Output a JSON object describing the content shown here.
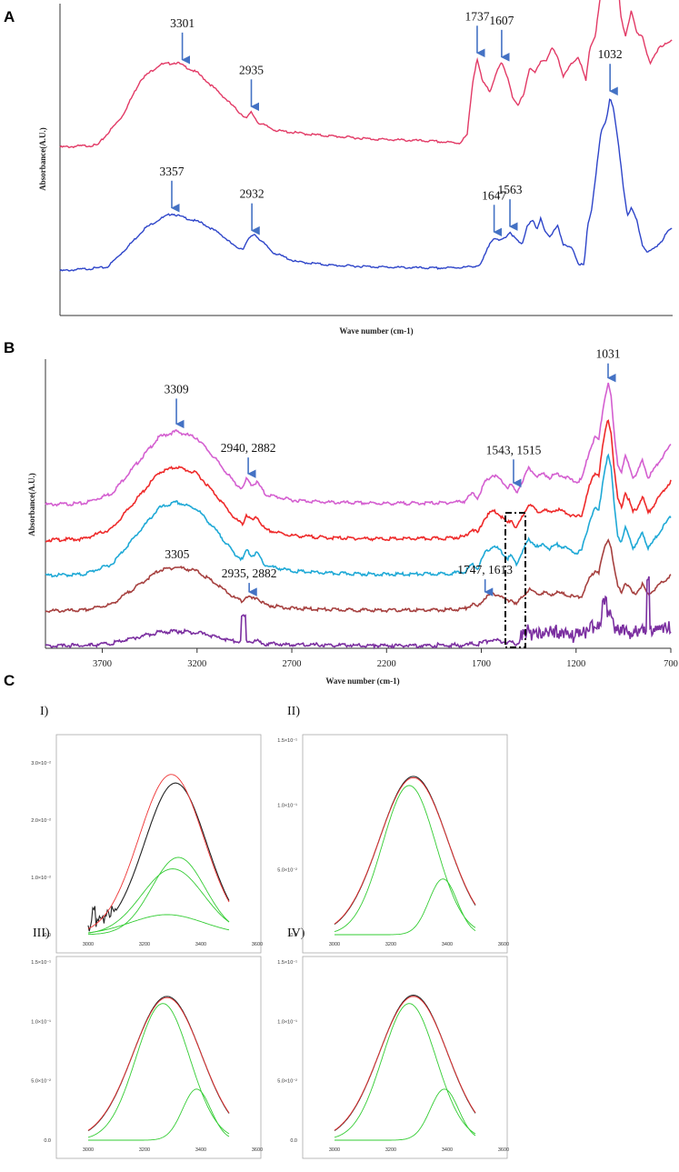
{
  "panels": {
    "A": "A",
    "B": "B",
    "C": "C"
  },
  "colors": {
    "arrow": "#4472C4",
    "green": "#33cc33",
    "fitRed": "#ee3333",
    "dataBlack": "#222222"
  },
  "chart_data": [
    {
      "id": "A",
      "type": "line",
      "title": "",
      "xlabel": "Wave number (cm-1)",
      "ylabel": "Absorbance(A.U.)",
      "xlim": [
        3950,
        700
      ],
      "series": [
        {
          "name": "top",
          "color": "#E23A66",
          "points": [
            [
              3950,
              0.3
            ],
            [
              3750,
              0.31
            ],
            [
              3620,
              0.45
            ],
            [
              3520,
              0.63
            ],
            [
              3420,
              0.7
            ],
            [
              3330,
              0.71
            ],
            [
              3220,
              0.66
            ],
            [
              3100,
              0.56
            ],
            [
              3000,
              0.47
            ],
            [
              2960,
              0.44
            ],
            [
              2935,
              0.47
            ],
            [
              2900,
              0.42
            ],
            [
              2800,
              0.38
            ],
            [
              2600,
              0.36
            ],
            [
              2300,
              0.34
            ],
            [
              2000,
              0.33
            ],
            [
              1830,
              0.32
            ],
            [
              1790,
              0.36
            ],
            [
              1760,
              0.62
            ],
            [
              1737,
              0.73
            ],
            [
              1710,
              0.62
            ],
            [
              1670,
              0.57
            ],
            [
              1640,
              0.65
            ],
            [
              1607,
              0.71
            ],
            [
              1575,
              0.64
            ],
            [
              1545,
              0.53
            ],
            [
              1520,
              0.5
            ],
            [
              1490,
              0.56
            ],
            [
              1460,
              0.68
            ],
            [
              1430,
              0.66
            ],
            [
              1400,
              0.72
            ],
            [
              1370,
              0.72
            ],
            [
              1340,
              0.78
            ],
            [
              1310,
              0.74
            ],
            [
              1280,
              0.64
            ],
            [
              1240,
              0.7
            ],
            [
              1200,
              0.74
            ],
            [
              1160,
              0.62
            ],
            [
              1140,
              0.78
            ],
            [
              1110,
              0.84
            ],
            [
              1080,
              1.05
            ],
            [
              1065,
              1.07
            ],
            [
              1045,
              1.02
            ],
            [
              1025,
              1.06
            ],
            [
              1009,
              1.34
            ],
            [
              995,
              1.16
            ],
            [
              975,
              0.93
            ],
            [
              950,
              0.84
            ],
            [
              920,
              0.96
            ],
            [
              890,
              0.85
            ],
            [
              860,
              0.84
            ],
            [
              820,
              0.7
            ],
            [
              770,
              0.79
            ],
            [
              730,
              0.8
            ],
            [
              700,
              0.82
            ]
          ]
        },
        {
          "name": "bottom",
          "color": "#2E45C9",
          "points": [
            [
              3950,
              0.0
            ],
            [
              3700,
              0.02
            ],
            [
              3600,
              0.12
            ],
            [
              3500,
              0.23
            ],
            [
              3420,
              0.28
            ],
            [
              3357,
              0.31
            ],
            [
              3300,
              0.29
            ],
            [
              3200,
              0.26
            ],
            [
              3100,
              0.2
            ],
            [
              3020,
              0.13
            ],
            [
              2980,
              0.12
            ],
            [
              2950,
              0.17
            ],
            [
              2920,
              0.2
            ],
            [
              2880,
              0.16
            ],
            [
              2820,
              0.1
            ],
            [
              2700,
              0.05
            ],
            [
              2500,
              0.03
            ],
            [
              2200,
              0.02
            ],
            [
              1950,
              0.015
            ],
            [
              1800,
              0.02
            ],
            [
              1720,
              0.03
            ],
            [
              1690,
              0.1
            ],
            [
              1665,
              0.16
            ],
            [
              1647,
              0.18
            ],
            [
              1620,
              0.16
            ],
            [
              1590,
              0.18
            ],
            [
              1563,
              0.21
            ],
            [
              1540,
              0.18
            ],
            [
              1500,
              0.14
            ],
            [
              1470,
              0.25
            ],
            [
              1440,
              0.27
            ],
            [
              1420,
              0.22
            ],
            [
              1400,
              0.29
            ],
            [
              1380,
              0.22
            ],
            [
              1350,
              0.18
            ],
            [
              1310,
              0.25
            ],
            [
              1280,
              0.14
            ],
            [
              1230,
              0.12
            ],
            [
              1200,
              0.04
            ],
            [
              1170,
              0.03
            ],
            [
              1150,
              0.25
            ],
            [
              1130,
              0.33
            ],
            [
              1100,
              0.58
            ],
            [
              1080,
              0.75
            ],
            [
              1060,
              0.79
            ],
            [
              1045,
              0.85
            ],
            [
              1032,
              0.94
            ],
            [
              1015,
              0.88
            ],
            [
              990,
              0.7
            ],
            [
              960,
              0.44
            ],
            [
              940,
              0.3
            ],
            [
              920,
              0.34
            ],
            [
              890,
              0.27
            ],
            [
              860,
              0.14
            ],
            [
              830,
              0.1
            ],
            [
              800,
              0.12
            ],
            [
              760,
              0.16
            ],
            [
              720,
              0.22
            ],
            [
              700,
              0.23
            ]
          ]
        }
      ],
      "annotations": [
        {
          "label": "3301",
          "x": 3301,
          "series": "top"
        },
        {
          "label": "2935",
          "x": 2935,
          "series": "top"
        },
        {
          "label": "1737",
          "x": 1737,
          "series": "top"
        },
        {
          "label": "1607",
          "x": 1607,
          "series": "top"
        },
        {
          "label": "1009",
          "x": 1009,
          "series": "top"
        },
        {
          "label": "3357",
          "x": 3357,
          "series": "bottom"
        },
        {
          "label": "2932",
          "x": 2932,
          "series": "bottom"
        },
        {
          "label": "1647",
          "x": 1647,
          "series": "bottom"
        },
        {
          "label": "1563",
          "x": 1563,
          "series": "bottom"
        },
        {
          "label": "1032",
          "x": 1032,
          "series": "bottom"
        }
      ]
    },
    {
      "id": "B",
      "type": "line",
      "title": "",
      "xlabel": "Wave number (cm-1)",
      "ylabel": "Absorbance(A.U.)",
      "xlim": [
        4000,
        700
      ],
      "xticks": [
        3700,
        3200,
        2700,
        2200,
        1700,
        1200,
        700
      ],
      "series": [
        {
          "name": "s1",
          "color": "#D45FD0",
          "offset": 4.0,
          "scale": 1.0
        },
        {
          "name": "s2",
          "color": "#EE2A2A",
          "offset": 3.0,
          "scale": 1.0
        },
        {
          "name": "s3",
          "color": "#1FA9D6",
          "offset": 2.0,
          "scale": 1.0
        },
        {
          "name": "s4",
          "color": "#A6403F",
          "offset": 1.0,
          "scale": 0.6
        },
        {
          "name": "s5",
          "color": "#7B2FA0",
          "offset": 0.0,
          "scale": 0.2
        }
      ],
      "baseShape": [
        [
          4000,
          0.0
        ],
        [
          3800,
          0.02
        ],
        [
          3650,
          0.2
        ],
        [
          3500,
          0.8
        ],
        [
          3400,
          1.2
        ],
        [
          3309,
          1.3
        ],
        [
          3200,
          1.18
        ],
        [
          3100,
          0.8
        ],
        [
          3000,
          0.38
        ],
        [
          2960,
          0.28
        ],
        [
          2940,
          0.45
        ],
        [
          2910,
          0.35
        ],
        [
          2882,
          0.4
        ],
        [
          2840,
          0.18
        ],
        [
          2700,
          0.08
        ],
        [
          2500,
          0.04
        ],
        [
          2200,
          0.02
        ],
        [
          1900,
          0.03
        ],
        [
          1790,
          0.06
        ],
        [
          1747,
          0.2
        ],
        [
          1720,
          0.12
        ],
        [
          1680,
          0.4
        ],
        [
          1640,
          0.52
        ],
        [
          1613,
          0.48
        ],
        [
          1560,
          0.3
        ],
        [
          1543,
          0.36
        ],
        [
          1515,
          0.2
        ],
        [
          1480,
          0.44
        ],
        [
          1450,
          0.64
        ],
        [
          1400,
          0.5
        ],
        [
          1370,
          0.55
        ],
        [
          1340,
          0.48
        ],
        [
          1300,
          0.55
        ],
        [
          1250,
          0.48
        ],
        [
          1200,
          0.4
        ],
        [
          1170,
          0.45
        ],
        [
          1130,
          0.95
        ],
        [
          1100,
          1.2
        ],
        [
          1080,
          1.15
        ],
        [
          1060,
          1.65
        ],
        [
          1045,
          1.95
        ],
        [
          1031,
          2.15
        ],
        [
          1015,
          1.9
        ],
        [
          1000,
          1.3
        ],
        [
          980,
          0.72
        ],
        [
          960,
          0.58
        ],
        [
          940,
          0.85
        ],
        [
          920,
          0.7
        ],
        [
          900,
          0.5
        ],
        [
          880,
          0.55
        ],
        [
          850,
          0.78
        ],
        [
          820,
          0.48
        ],
        [
          790,
          0.62
        ],
        [
          750,
          0.82
        ],
        [
          700,
          1.05
        ]
      ],
      "annotations": [
        {
          "label": "3309",
          "x": 3309
        },
        {
          "label": "2940, 2882",
          "x": 2930
        },
        {
          "label": "1543, 1515",
          "x": 1530
        },
        {
          "label": "1031",
          "x": 1031
        },
        {
          "label": "3305",
          "x": 3305
        },
        {
          "label": "2935, 2882",
          "x": 2925
        },
        {
          "label": "1747, 1613",
          "x": 1680
        }
      ]
    },
    {
      "id": "C-I",
      "type": "line",
      "title": "I)",
      "xticks": [
        3000,
        3200,
        3400,
        3600
      ],
      "yticks": [
        "0.0",
        "1.0×10⁻²",
        "2.0×10⁻²",
        "3.0×10⁻²"
      ],
      "xlim": [
        2900,
        3600
      ],
      "ylim": [
        0,
        0.034
      ],
      "series": [
        {
          "name": "data",
          "color": "#222222",
          "gaussian": {
            "amp": 0.0265,
            "center": 3310,
            "sigma": 110
          },
          "noise": true
        },
        {
          "name": "fit",
          "color": "#ee3333",
          "gaussian": {
            "amp": 0.028,
            "center": 3295,
            "sigma": 115
          }
        },
        {
          "name": "comp1",
          "color": "#33cc33",
          "gaussian": {
            "amp": 0.0135,
            "center": 3320,
            "sigma": 95
          }
        },
        {
          "name": "comp2",
          "color": "#33cc33",
          "gaussian": {
            "amp": 0.0115,
            "center": 3300,
            "sigma": 110
          }
        },
        {
          "name": "comp3",
          "color": "#33cc33",
          "gaussian": {
            "amp": 0.0035,
            "center": 3280,
            "sigma": 130
          }
        }
      ]
    },
    {
      "id": "C-II",
      "type": "line",
      "title": "II)",
      "xticks": [
        3000,
        3200,
        3400,
        3600
      ],
      "yticks": [
        "0.0",
        "5.0×10⁻²",
        "1.0×10⁻¹",
        "1.5×10⁻¹"
      ],
      "xlim": [
        2900,
        3600
      ],
      "ylim": [
        0,
        0.15
      ],
      "series": [
        {
          "name": "data",
          "color": "#222222",
          "gaussian": {
            "amp": 0.122,
            "center": 3280,
            "sigma": 120
          }
        },
        {
          "name": "fit",
          "color": "#ee3333",
          "gaussian": {
            "amp": 0.121,
            "center": 3280,
            "sigma": 121
          }
        },
        {
          "name": "comp1",
          "color": "#33cc33",
          "gaussian": {
            "amp": 0.115,
            "center": 3265,
            "sigma": 95
          }
        },
        {
          "name": "comp2",
          "color": "#33cc33",
          "gaussian": {
            "amp": 0.043,
            "center": 3385,
            "sigma": 50
          }
        }
      ]
    },
    {
      "id": "C-III",
      "type": "line",
      "title": "III)",
      "xticks": [
        3000,
        3200,
        3400,
        3600
      ],
      "yticks": [
        "0.0",
        "5.0×10⁻²",
        "1.0×10⁻¹",
        "1.5×10⁻¹"
      ],
      "xlim": [
        2900,
        3600
      ],
      "ylim": [
        0,
        0.15
      ],
      "series": [
        {
          "name": "data",
          "color": "#222222",
          "gaussian": {
            "amp": 0.121,
            "center": 3280,
            "sigma": 120
          }
        },
        {
          "name": "fit",
          "color": "#ee3333",
          "gaussian": {
            "amp": 0.12,
            "center": 3280,
            "sigma": 121
          }
        },
        {
          "name": "comp1",
          "color": "#33cc33",
          "gaussian": {
            "amp": 0.115,
            "center": 3265,
            "sigma": 95
          }
        },
        {
          "name": "comp2",
          "color": "#33cc33",
          "gaussian": {
            "amp": 0.043,
            "center": 3385,
            "sigma": 50
          }
        }
      ]
    },
    {
      "id": "C-IV",
      "type": "line",
      "title": "IV)",
      "xticks": [
        3000,
        3200,
        3400,
        3600
      ],
      "yticks": [
        "0.0",
        "5.0×10⁻²",
        "1.0×10⁻¹",
        "1.5×10⁻¹"
      ],
      "xlim": [
        2900,
        3600
      ],
      "ylim": [
        0,
        0.15
      ],
      "series": [
        {
          "name": "data",
          "color": "#222222",
          "gaussian": {
            "amp": 0.122,
            "center": 3280,
            "sigma": 120
          }
        },
        {
          "name": "fit",
          "color": "#ee3333",
          "gaussian": {
            "amp": 0.121,
            "center": 3280,
            "sigma": 121
          }
        },
        {
          "name": "comp1",
          "color": "#33cc33",
          "gaussian": {
            "amp": 0.115,
            "center": 3265,
            "sigma": 95
          }
        },
        {
          "name": "comp2",
          "color": "#33cc33",
          "gaussian": {
            "amp": 0.043,
            "center": 3390,
            "sigma": 50
          }
        }
      ]
    }
  ]
}
